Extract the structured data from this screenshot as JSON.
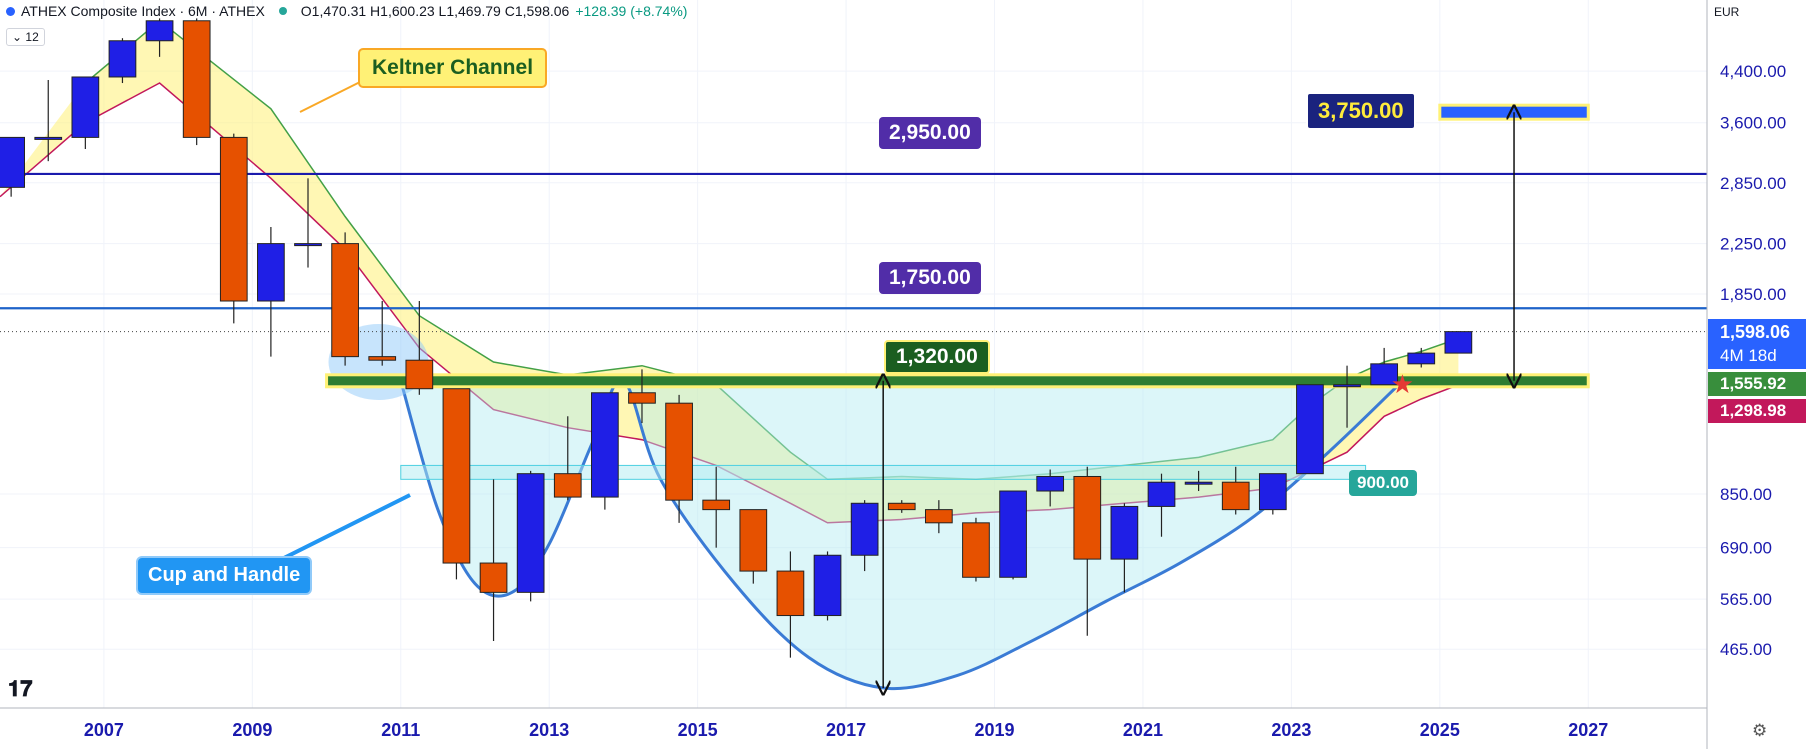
{
  "header": {
    "symbol_title": "ATHEX Composite Index · 6M · ATHEX",
    "ohlc": "O1,470.31 H1,600.23 L1,469.79 C1,598.06",
    "change": "+128.39 (+8.74%)",
    "interval_badge": "12",
    "currency": "EUR"
  },
  "annotations": {
    "keltner_label": "Keltner Channel",
    "cup_label": "Cup and Handle",
    "level_2950": "2,950.00",
    "level_1750": "1,750.00",
    "level_1320": "1,320.00",
    "level_3750": "3,750.00",
    "level_900": "900.00"
  },
  "price_tags": {
    "last_price": "1,598.06",
    "countdown": "4M 18d",
    "keltner_upper": "1,555.92",
    "keltner_lower": "1,298.98"
  },
  "colors": {
    "up": "#1f1fe6",
    "down": "#e65100",
    "keltner_upper": "#43a047",
    "keltner_lower": "#c2185b",
    "keltner_fill": "#fff176",
    "cup_stroke": "#3a7bd5",
    "cup_fill": "#b2ebf2",
    "resistance": "#1a1aad",
    "support_band": "#2e7d32",
    "axis_text": "#1a1aad"
  },
  "chart_data": {
    "type": "candlestick",
    "period": "6M",
    "x_axis": {
      "ticks": [
        "2007",
        "2009",
        "2011",
        "2013",
        "2015",
        "2017",
        "2019",
        "2021",
        "2023",
        "2025",
        "2027"
      ],
      "range": [
        2005.6,
        2028.6
      ]
    },
    "y_axis": {
      "scale": "log",
      "ticks": [
        "4,400.00",
        "3,600.00",
        "2,850.00",
        "2,250.00",
        "1,850.00",
        "850.00",
        "690.00",
        "565.00",
        "465.00"
      ],
      "tick_values": [
        4400,
        3600,
        2850,
        2250,
        1850,
        850,
        690,
        565,
        465
      ],
      "range": [
        370,
        5800
      ]
    },
    "candles": [
      {
        "t": 2005.75,
        "o": 2800,
        "h": 3400,
        "l": 2700,
        "c": 3400
      },
      {
        "t": 2006.25,
        "o": 3400,
        "h": 4250,
        "l": 3100,
        "c": 3400
      },
      {
        "t": 2006.75,
        "o": 3400,
        "h": 4300,
        "l": 3250,
        "c": 4300
      },
      {
        "t": 2007.25,
        "o": 4300,
        "h": 5000,
        "l": 4200,
        "c": 4950
      },
      {
        "t": 2007.75,
        "o": 4950,
        "h": 5400,
        "l": 4650,
        "c": 5350
      },
      {
        "t": 2008.25,
        "o": 5350,
        "h": 5400,
        "l": 3300,
        "c": 3400
      },
      {
        "t": 2008.75,
        "o": 3400,
        "h": 3450,
        "l": 1650,
        "c": 1800
      },
      {
        "t": 2009.25,
        "o": 1800,
        "h": 2400,
        "l": 1450,
        "c": 2250
      },
      {
        "t": 2009.75,
        "o": 2250,
        "h": 2900,
        "l": 2050,
        "c": 2250
      },
      {
        "t": 2010.25,
        "o": 2250,
        "h": 2350,
        "l": 1400,
        "c": 1450
      },
      {
        "t": 2010.75,
        "o": 1450,
        "h": 1800,
        "l": 1400,
        "c": 1430
      },
      {
        "t": 2011.25,
        "o": 1430,
        "h": 1800,
        "l": 1250,
        "c": 1280
      },
      {
        "t": 2011.75,
        "o": 1280,
        "h": 1280,
        "l": 610,
        "c": 650
      },
      {
        "t": 2012.25,
        "o": 650,
        "h": 900,
        "l": 480,
        "c": 580
      },
      {
        "t": 2012.75,
        "o": 580,
        "h": 930,
        "l": 560,
        "c": 920
      },
      {
        "t": 2013.25,
        "o": 920,
        "h": 1150,
        "l": 830,
        "c": 840
      },
      {
        "t": 2013.75,
        "o": 840,
        "h": 1260,
        "l": 800,
        "c": 1260
      },
      {
        "t": 2014.25,
        "o": 1260,
        "h": 1380,
        "l": 1120,
        "c": 1210
      },
      {
        "t": 2014.75,
        "o": 1210,
        "h": 1250,
        "l": 760,
        "c": 830
      },
      {
        "t": 2015.25,
        "o": 830,
        "h": 945,
        "l": 690,
        "c": 800
      },
      {
        "t": 2015.75,
        "o": 800,
        "h": 800,
        "l": 600,
        "c": 630
      },
      {
        "t": 2016.25,
        "o": 630,
        "h": 680,
        "l": 450,
        "c": 530
      },
      {
        "t": 2016.75,
        "o": 530,
        "h": 680,
        "l": 520,
        "c": 670
      },
      {
        "t": 2017.25,
        "o": 670,
        "h": 830,
        "l": 630,
        "c": 820
      },
      {
        "t": 2017.75,
        "o": 820,
        "h": 830,
        "l": 790,
        "c": 800
      },
      {
        "t": 2018.25,
        "o": 800,
        "h": 830,
        "l": 730,
        "c": 760
      },
      {
        "t": 2018.75,
        "o": 760,
        "h": 775,
        "l": 605,
        "c": 615
      },
      {
        "t": 2019.25,
        "o": 615,
        "h": 860,
        "l": 610,
        "c": 860
      },
      {
        "t": 2019.75,
        "o": 860,
        "h": 935,
        "l": 810,
        "c": 910
      },
      {
        "t": 2020.25,
        "o": 910,
        "h": 945,
        "l": 490,
        "c": 660
      },
      {
        "t": 2020.75,
        "o": 660,
        "h": 820,
        "l": 580,
        "c": 810
      },
      {
        "t": 2021.25,
        "o": 810,
        "h": 920,
        "l": 720,
        "c": 890
      },
      {
        "t": 2021.75,
        "o": 890,
        "h": 930,
        "l": 860,
        "c": 890
      },
      {
        "t": 2022.25,
        "o": 890,
        "h": 945,
        "l": 785,
        "c": 800
      },
      {
        "t": 2022.75,
        "o": 800,
        "h": 920,
        "l": 785,
        "c": 920
      },
      {
        "t": 2023.25,
        "o": 920,
        "h": 1300,
        "l": 920,
        "c": 1300
      },
      {
        "t": 2023.75,
        "o": 1300,
        "h": 1400,
        "l": 1100,
        "c": 1300
      },
      {
        "t": 2024.25,
        "o": 1300,
        "h": 1500,
        "l": 1300,
        "c": 1410
      },
      {
        "t": 2024.75,
        "o": 1410,
        "h": 1500,
        "l": 1390,
        "c": 1470
      },
      {
        "t": 2025.25,
        "o": 1470,
        "h": 1600,
        "l": 1470,
        "c": 1598
      }
    ],
    "keltner": {
      "upper": [
        [
          2006.75,
          4200
        ],
        [
          2007.75,
          5350
        ],
        [
          2009.25,
          3800
        ],
        [
          2010.25,
          2500
        ],
        [
          2011.25,
          1700
        ],
        [
          2012.25,
          1420
        ],
        [
          2013.25,
          1350
        ],
        [
          2014.25,
          1400
        ],
        [
          2015.25,
          1300
        ],
        [
          2016.25,
          1000
        ],
        [
          2016.75,
          900
        ],
        [
          2017.75,
          910
        ],
        [
          2018.75,
          900
        ],
        [
          2019.75,
          920
        ],
        [
          2020.75,
          950
        ],
        [
          2021.75,
          980
        ],
        [
          2022.75,
          1050
        ],
        [
          2023.25,
          1200
        ],
        [
          2023.75,
          1330
        ],
        [
          2024.25,
          1420
        ],
        [
          2024.75,
          1480
        ],
        [
          2025.25,
          1555.92
        ]
      ],
      "lower": [
        [
          2005.6,
          2700
        ],
        [
          2006.75,
          3600
        ],
        [
          2007.75,
          4200
        ],
        [
          2009.25,
          2900
        ],
        [
          2010.25,
          2200
        ],
        [
          2011.25,
          1500
        ],
        [
          2012.25,
          1180
        ],
        [
          2013.25,
          1100
        ],
        [
          2014.25,
          1050
        ],
        [
          2015.25,
          950
        ],
        [
          2016.25,
          820
        ],
        [
          2016.75,
          760
        ],
        [
          2017.75,
          770
        ],
        [
          2018.75,
          790
        ],
        [
          2019.75,
          800
        ],
        [
          2020.75,
          820
        ],
        [
          2021.75,
          840
        ],
        [
          2022.75,
          870
        ],
        [
          2023.75,
          1000
        ],
        [
          2024.25,
          1150
        ],
        [
          2024.75,
          1230
        ],
        [
          2025.25,
          1298.98
        ]
      ]
    },
    "levels": [
      {
        "value": 2950,
        "color": "#1a1aad"
      },
      {
        "value": 1750,
        "color": "#1e63c9"
      }
    ],
    "support_band": {
      "value": 1320,
      "from": 2010.0,
      "to": 2027.0
    },
    "target": {
      "value": 3750,
      "from": 2025.0,
      "to": 2027.0
    },
    "handle_box": {
      "from": 2011.0,
      "to": 2024.0,
      "top": 950,
      "bottom": 900
    },
    "cup": [
      [
        2011.0,
        1320
      ],
      [
        2011.5,
        800
      ],
      [
        2012.0,
        600
      ],
      [
        2012.5,
        580
      ],
      [
        2013.0,
        700
      ],
      [
        2013.6,
        1050
      ],
      [
        2014.0,
        1320
      ],
      [
        2014.5,
        900
      ],
      [
        2015.5,
        600
      ],
      [
        2016.5,
        450
      ],
      [
        2017.5,
        400
      ],
      [
        2018.5,
        420
      ],
      [
        2019.5,
        480
      ],
      [
        2020.5,
        560
      ],
      [
        2021.5,
        650
      ],
      [
        2022.5,
        780
      ],
      [
        2023.5,
        1000
      ],
      [
        2024.5,
        1320
      ]
    ],
    "measure_lines": [
      {
        "x": 2017.5,
        "from": 1320,
        "to": 400
      },
      {
        "x": 2026.0,
        "from": 1320,
        "to": 3750
      }
    ],
    "last_price": 1598.06
  }
}
